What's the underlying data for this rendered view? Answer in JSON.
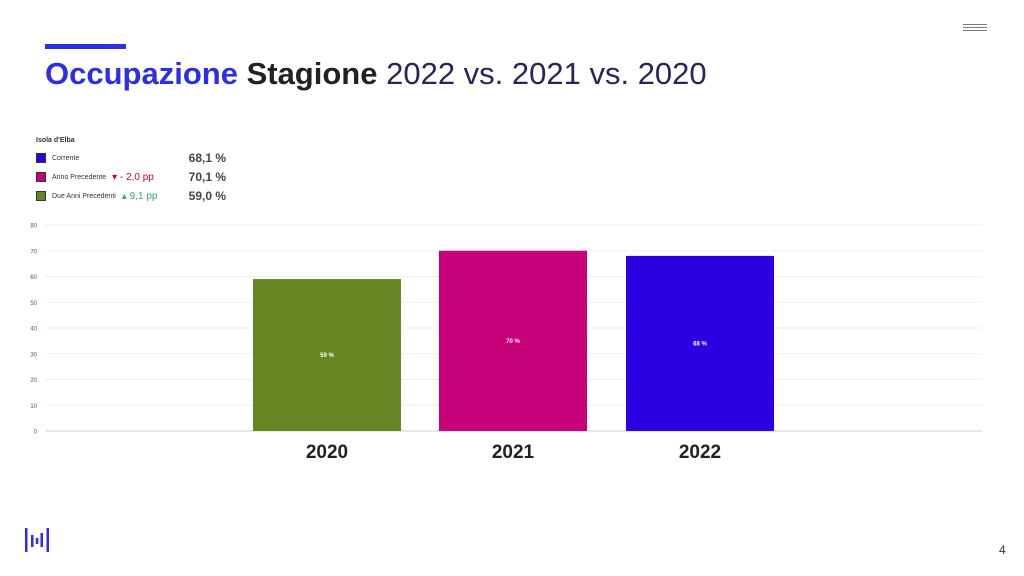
{
  "slide": {
    "title_part1": "Occupazione",
    "title_part2": "Stagione",
    "title_part3": "2022 vs. 2021 vs. 2020",
    "page_number": "4"
  },
  "legend": {
    "title": "Isola d'Elba",
    "items": [
      {
        "label": "Corrente",
        "color": "#2b00e3",
        "value": "68,1 %",
        "delta": ""
      },
      {
        "label": "Anno Precedente",
        "color": "#c8007a",
        "value": "70,1 %",
        "delta": "- 2,0 pp",
        "delta_dir": "down"
      },
      {
        "label": "Due Anni Precedenti",
        "color": "#668523",
        "value": "59,0 %",
        "delta": "9,1 pp",
        "delta_dir": "up"
      }
    ]
  },
  "chart_data": {
    "type": "bar",
    "categories": [
      "2020",
      "2021",
      "2022"
    ],
    "values": [
      59,
      70,
      68
    ],
    "data_labels": [
      "59 %",
      "70 %",
      "68 %"
    ],
    "colors": [
      "#668523",
      "#c8007a",
      "#2b00e3"
    ],
    "ylim": [
      0,
      80
    ],
    "yticks": [
      0,
      10,
      20,
      30,
      40,
      50,
      60,
      70,
      80
    ],
    "grid": true,
    "legend_position": "top-left"
  },
  "icons": {
    "menu": "hamburger-menu-icon",
    "logo": "brand-logo-icon"
  }
}
